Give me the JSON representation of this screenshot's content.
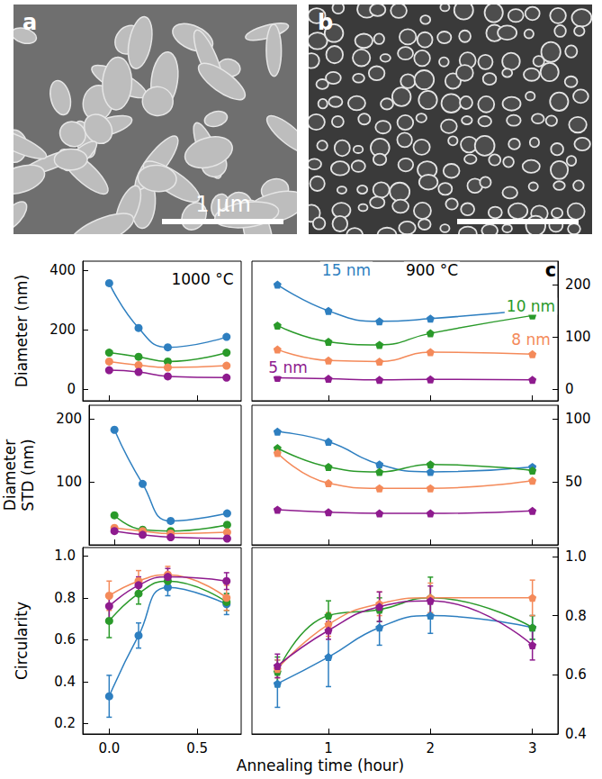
{
  "images": [
    {
      "label": "a",
      "scale_bar": "1 μm"
    },
    {
      "label": "b"
    }
  ],
  "x_label": "Annealing time (hour)",
  "chart_data": [
    {
      "type": "line",
      "ylabel": "Diameter (nm)",
      "annotations": [
        {
          "text": "1000 °C"
        }
      ],
      "x": [
        0,
        0.167,
        0.333,
        0.667
      ],
      "xlim": [
        -0.15,
        0.75
      ],
      "xticks": [
        {
          "value": 0,
          "label": "0.0"
        },
        {
          "value": 0.5,
          "label": "0.5"
        }
      ],
      "ylim": [
        -40,
        430
      ],
      "yticks": [
        0,
        200,
        400
      ],
      "grid": false,
      "tick_labels": "y",
      "series": [
        {
          "color": "#2e7fc0",
          "marker": "circle",
          "values": [
            356,
            205,
            140,
            175
          ]
        },
        {
          "color": "#2a9a2a",
          "marker": "circle",
          "values": [
            122,
            108,
            92,
            122
          ]
        },
        {
          "color": "#f48a5a",
          "marker": "circle",
          "values": [
            92,
            80,
            72,
            78
          ]
        },
        {
          "color": "#8e1b8e",
          "marker": "circle",
          "values": [
            63,
            57,
            42,
            38
          ]
        }
      ]
    },
    {
      "type": "line",
      "annotations": [
        {
          "text": "900 °C"
        }
      ],
      "panel_label": "c",
      "x": [
        0.5,
        1,
        1.5,
        2,
        3
      ],
      "xlim": [
        0.25,
        3.25
      ],
      "xticks": [
        1,
        2,
        3
      ],
      "ylim": [
        -22,
        245
      ],
      "yticks": [
        0,
        100,
        200
      ],
      "grid": false,
      "tick_labels": "y",
      "series": [
        {
          "name": "15 nm",
          "color": "#2e7fc0",
          "marker": "pentagon",
          "values": [
            200,
            150,
            130,
            135,
            152
          ]
        },
        {
          "name": "10 nm",
          "color": "#2a9a2a",
          "marker": "pentagon",
          "values": [
            122,
            91,
            85,
            107,
            141
          ]
        },
        {
          "name": "8 nm",
          "color": "#f48a5a",
          "marker": "pentagon",
          "values": [
            76,
            55,
            53,
            71,
            67
          ]
        },
        {
          "name": "5 nm",
          "color": "#8e1b8e",
          "marker": "pentagon",
          "values": [
            22,
            20,
            18,
            19,
            18
          ]
        }
      ]
    },
    {
      "type": "line",
      "ylabel": "Diameter STD (nm)",
      "x": [
        0,
        0.167,
        0.333,
        0.667
      ],
      "xlim": [
        -0.15,
        0.75
      ],
      "xticks": [
        {
          "value": 0,
          "label": "0.0"
        },
        {
          "value": 0.5,
          "label": "0.5"
        }
      ],
      "ylim": [
        0,
        222
      ],
      "yticks": [
        100,
        200
      ],
      "grid": false,
      "tick_labels": "y",
      "series": [
        {
          "color": "#2e7fc0",
          "marker": "circle",
          "values": [
            183,
            97,
            38,
            50
          ]
        },
        {
          "color": "#2a9a2a",
          "marker": "circle",
          "values": [
            47,
            24,
            22,
            32
          ]
        },
        {
          "color": "#f48a5a",
          "marker": "circle",
          "values": [
            27,
            22,
            18,
            20
          ]
        },
        {
          "color": "#8e1b8e",
          "marker": "circle",
          "values": [
            22,
            16,
            12,
            10
          ]
        }
      ]
    },
    {
      "type": "line",
      "x": [
        0.5,
        1,
        1.5,
        2,
        3
      ],
      "xlim": [
        0.25,
        3.25
      ],
      "xticks": [
        1,
        2,
        3
      ],
      "ylim": [
        0,
        111
      ],
      "yticks": [
        50,
        100
      ],
      "grid": false,
      "tick_labels": "y",
      "series": [
        {
          "color": "#2e7fc0",
          "marker": "pentagon",
          "values": [
            90,
            82,
            64,
            58,
            62
          ]
        },
        {
          "color": "#2a9a2a",
          "marker": "pentagon",
          "values": [
            77,
            62,
            58,
            64,
            59
          ]
        },
        {
          "color": "#f48a5a",
          "marker": "pentagon",
          "values": [
            73,
            49,
            45,
            45,
            51
          ]
        },
        {
          "color": "#8e1b8e",
          "marker": "pentagon",
          "values": [
            28,
            26,
            25,
            25,
            27
          ]
        }
      ]
    },
    {
      "type": "line",
      "ylabel": "Circularity",
      "x": [
        0,
        0.167,
        0.333,
        0.667
      ],
      "xlim": [
        -0.15,
        0.75
      ],
      "xticks": [
        {
          "value": 0,
          "label": "0.0"
        },
        {
          "value": 0.5,
          "label": "0.5"
        }
      ],
      "ylim": [
        0.15,
        1.04
      ],
      "yticks": [
        0.2,
        0.4,
        0.6,
        0.8,
        {
          "value": 1,
          "label": "1.0"
        }
      ],
      "grid": false,
      "tick_labels": true,
      "series": [
        {
          "color": "#2e7fc0",
          "marker": "circle",
          "values": [
            0.33,
            0.62,
            0.85,
            0.77
          ],
          "errors": [
            0.1,
            0.06,
            0.04,
            0.05
          ]
        },
        {
          "color": "#2a9a2a",
          "marker": "circle",
          "values": [
            0.69,
            0.82,
            0.88,
            0.78
          ],
          "errors": [
            0.08,
            0.05,
            0.04,
            0.04
          ]
        },
        {
          "color": "#f48a5a",
          "marker": "circle",
          "values": [
            0.81,
            0.88,
            0.91,
            0.8
          ],
          "errors": [
            0.07,
            0.05,
            0.04,
            0.06
          ]
        },
        {
          "color": "#8e1b8e",
          "marker": "circle",
          "values": [
            0.76,
            0.86,
            0.9,
            0.88
          ],
          "errors": [
            0.06,
            0.04,
            0.04,
            0.04
          ]
        }
      ]
    },
    {
      "type": "line",
      "x": [
        0.5,
        1,
        1.5,
        2,
        3
      ],
      "xlim": [
        0.25,
        3.25
      ],
      "xticks": [
        1,
        2,
        3
      ],
      "ylim": [
        0.4,
        1.03
      ],
      "yticks": [
        0.4,
        0.6,
        0.8,
        {
          "value": 1,
          "label": "1.0"
        }
      ],
      "grid": false,
      "tick_labels": true,
      "series": [
        {
          "color": "#2e7fc0",
          "marker": "pentagon",
          "values": [
            0.57,
            0.66,
            0.76,
            0.8,
            0.76
          ],
          "errors": [
            0.08,
            0.1,
            0.06,
            0.06,
            0.04
          ]
        },
        {
          "color": "#2a9a2a",
          "marker": "pentagon",
          "values": [
            0.61,
            0.8,
            0.82,
            0.86,
            0.76
          ],
          "errors": [
            0.05,
            0.05,
            0.04,
            0.07,
            0.04
          ]
        },
        {
          "color": "#f48a5a",
          "marker": "pentagon",
          "values": [
            0.62,
            0.77,
            0.84,
            0.86,
            0.86
          ],
          "errors": [
            0.03,
            0.04,
            0.04,
            0.05,
            0.06
          ]
        },
        {
          "color": "#8e1b8e",
          "marker": "pentagon",
          "values": [
            0.63,
            0.75,
            0.83,
            0.85,
            0.7
          ],
          "errors": [
            0.04,
            0.03,
            0.05,
            0.05,
            0.05
          ]
        }
      ]
    }
  ]
}
